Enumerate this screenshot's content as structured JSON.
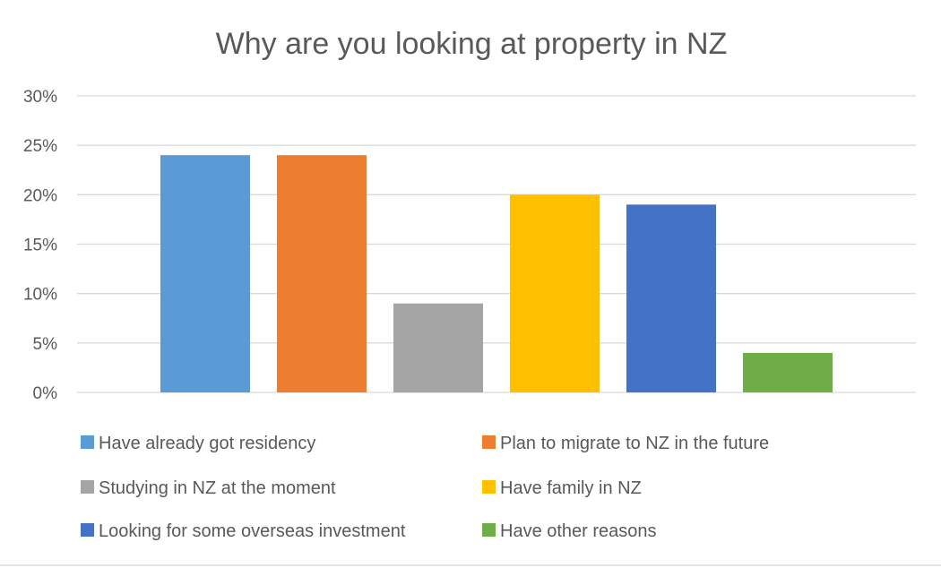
{
  "chart_data": {
    "type": "bar",
    "title": "Why are you looking at property in NZ",
    "xlabel": "",
    "ylabel": "",
    "ylim": [
      0,
      30
    ],
    "yticks": [
      "0%",
      "5%",
      "10%",
      "15%",
      "20%",
      "25%",
      "30%"
    ],
    "yticks_values": [
      0,
      5,
      10,
      15,
      20,
      25,
      30
    ],
    "grid": true,
    "legend_position": "bottom",
    "series": [
      {
        "name": "Have already got residency",
        "value": 24,
        "color": "#5b9bd5"
      },
      {
        "name": "Plan to migrate to NZ in the future",
        "value": 24,
        "color": "#ed7d31"
      },
      {
        "name": "Studying in NZ at the moment",
        "value": 9,
        "color": "#a5a5a5"
      },
      {
        "name": "Have family in NZ",
        "value": 20,
        "color": "#ffc000"
      },
      {
        "name": "Looking for some overseas investment",
        "value": 19,
        "color": "#4472c4"
      },
      {
        "name": "Have other reasons",
        "value": 4,
        "color": "#70ad47"
      }
    ]
  }
}
